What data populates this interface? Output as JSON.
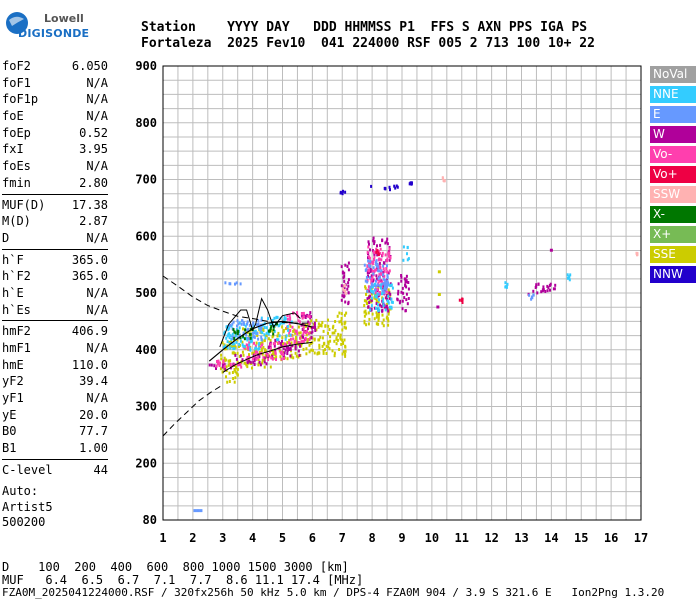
{
  "logo": {
    "line1": "Lowell",
    "line2": "DIGISONDE"
  },
  "header": {
    "line1": "Station    YYYY DAY   DDD HHMMSS P1  FFS S AXN PPS IGA PS",
    "line2": "Fortaleza  2025 Fev10  041 224000 RSF 005 2 713 100 10+ 22"
  },
  "params": [
    [
      [
        "foF2",
        "6.050"
      ],
      [
        "foF1",
        "N/A"
      ],
      [
        "foF1p",
        "N/A"
      ],
      [
        "foE",
        "N/A"
      ],
      [
        "foEp",
        "0.52"
      ],
      [
        "fxI",
        "3.95"
      ],
      [
        "foEs",
        "N/A"
      ],
      [
        "fmin",
        "2.80"
      ]
    ],
    [
      [
        "MUF(D)",
        "17.38"
      ],
      [
        "M(D)",
        "2.87"
      ],
      [
        "D",
        "N/A"
      ]
    ],
    [
      [
        "h`F",
        "365.0"
      ],
      [
        "h`F2",
        "365.0"
      ],
      [
        "h`E",
        "N/A"
      ],
      [
        "h`Es",
        "N/A"
      ]
    ],
    [
      [
        "hmF2",
        "406.9"
      ],
      [
        "hmF1",
        "N/A"
      ],
      [
        "hmE",
        "110.0"
      ],
      [
        "yF2",
        "39.4"
      ],
      [
        "yF1",
        "N/A"
      ],
      [
        "yE",
        "20.0"
      ],
      [
        "B0",
        "77.7"
      ],
      [
        "B1",
        "1.00"
      ]
    ],
    [
      [
        "C-level",
        "44"
      ]
    ]
  ],
  "auto": [
    "Auto:",
    "Artist5",
    "500200"
  ],
  "footer": {
    "line1": "D    100  200  400  600  800 1000 1500 3000 [km]",
    "line2": "MUF   6.4  6.5  6.7  7.1  7.7  8.6 11.1 17.4 [MHz]",
    "line3": "FZA0M_2025041224000.RSF / 320fx256h 50 kHz 5.0 km / DPS-4 FZA0M 904 / 3.9 S 321.6 E   Ion2Png 1.3.20"
  },
  "legend": [
    {
      "label": "NoVal",
      "color": "#a0a0a0",
      "text": "#ffffff"
    },
    {
      "label": "NNE",
      "color": "#33ccff",
      "text": "#ffffff"
    },
    {
      "label": "E",
      "color": "#6699ff",
      "text": "#ffffff"
    },
    {
      "label": "W",
      "color": "#b0009a",
      "text": "#ffffff"
    },
    {
      "label": "Vo-",
      "color": "#ff3fae",
      "text": "#ffffff"
    },
    {
      "label": "Vo+",
      "color": "#ee0044",
      "text": "#ffffff"
    },
    {
      "label": "SSW",
      "color": "#ffb2b2",
      "text": "#ffffff"
    },
    {
      "label": "X-",
      "color": "#007700",
      "text": "#ffffff"
    },
    {
      "label": "X+",
      "color": "#77bb55",
      "text": "#ffffff"
    },
    {
      "label": "SSE",
      "color": "#cccc00",
      "text": "#ffffff"
    },
    {
      "label": "NNW",
      "color": "#2200cc",
      "text": "#ffffff"
    }
  ],
  "chart_data": {
    "type": "scatter",
    "title": "",
    "xlabel": "",
    "ylabel": "",
    "xlim": [
      1,
      17
    ],
    "ylim": [
      80,
      900
    ],
    "xticks": [
      "1",
      "2",
      "3",
      "4",
      "5",
      "6",
      "7",
      "8",
      "9",
      "10",
      "11",
      "12",
      "13",
      "14",
      "15",
      "16",
      "17"
    ],
    "yticks": [
      "80",
      "200",
      "300",
      "400",
      "500",
      "600",
      "700",
      "800",
      "900"
    ],
    "yticks_values": [
      80,
      200,
      300,
      400,
      500,
      600,
      700,
      800,
      900
    ],
    "grid": true,
    "legend_placement": "right",
    "traces": [
      {
        "color": "#cccc00",
        "clusters": [
          [
            2.9,
            3.6,
            345,
            420
          ],
          [
            3.6,
            4.6,
            370,
            440
          ],
          [
            4.6,
            5.6,
            385,
            445
          ],
          [
            5.6,
            6.6,
            395,
            455
          ],
          [
            6.6,
            7.1,
            390,
            470
          ],
          [
            7.7,
            8.6,
            445,
            520
          ]
        ]
      },
      {
        "color": "#b0009a",
        "clusters": [
          [
            2.5,
            3.3,
            368,
            378
          ],
          [
            3.3,
            4.5,
            375,
            395
          ],
          [
            4.5,
            5.6,
            390,
            420
          ],
          [
            5.6,
            6.1,
            420,
            470
          ],
          [
            6.9,
            7.2,
            480,
            560
          ],
          [
            7.8,
            8.6,
            470,
            600
          ],
          [
            8.8,
            9.2,
            470,
            540
          ],
          [
            13.2,
            14.1,
            500,
            520
          ]
        ]
      },
      {
        "color": "#ff3fae",
        "clusters": [
          [
            2.6,
            3.6,
            372,
            385
          ],
          [
            3.6,
            5.1,
            385,
            415
          ],
          [
            5.1,
            5.9,
            415,
            470
          ],
          [
            7.8,
            8.6,
            500,
            585
          ]
        ]
      },
      {
        "color": "#33ccff",
        "clusters": [
          [
            3.0,
            4.2,
            400,
            450
          ],
          [
            4.2,
            5.3,
            420,
            460
          ],
          [
            7.9,
            8.7,
            470,
            520
          ],
          [
            9.0,
            9.2,
            560,
            590
          ],
          [
            12.4,
            12.5,
            512,
            525
          ],
          [
            14.5,
            14.6,
            525,
            535
          ]
        ]
      },
      {
        "color": "#6699ff",
        "clusters": [
          [
            3.2,
            4.3,
            420,
            455
          ],
          [
            7.7,
            8.5,
            500,
            560
          ],
          [
            3.0,
            3.6,
            518,
            522
          ],
          [
            13.2,
            13.4,
            490,
            500
          ]
        ]
      },
      {
        "color": "#2200cc",
        "clusters": [
          [
            7.9,
            8.9,
            684,
            692
          ],
          [
            6.9,
            7.1,
            677,
            682
          ],
          [
            9.2,
            9.3,
            693,
            698
          ]
        ]
      },
      {
        "color": "#007700",
        "clusters": [
          [
            3.3,
            4.0,
            420,
            440
          ],
          [
            4.4,
            4.8,
            430,
            450
          ]
        ]
      },
      {
        "color": "#ee0044",
        "clusters": [
          [
            8.1,
            8.3,
            560,
            580
          ],
          [
            10.9,
            11.0,
            485,
            495
          ]
        ]
      },
      {
        "color": "#ffb2b2",
        "clusters": [
          [
            6.9,
            7.1,
            500,
            520
          ],
          [
            10.3,
            10.4,
            700,
            706
          ],
          [
            16.8,
            16.9,
            568,
            574
          ]
        ]
      }
    ],
    "isolated_points": [
      {
        "x": 2.02,
        "y": 103,
        "color": "#6699ff"
      },
      {
        "x": 2.12,
        "y": 103,
        "color": "#6699ff"
      },
      {
        "x": 2.22,
        "y": 103,
        "color": "#6699ff"
      },
      {
        "x": 13.95,
        "y": 578,
        "color": "#b0009a"
      },
      {
        "x": 10.2,
        "y": 540,
        "color": "#cccc00"
      },
      {
        "x": 10.2,
        "y": 500,
        "color": "#cccc00"
      },
      {
        "x": 10.15,
        "y": 478,
        "color": "#b0009a"
      },
      {
        "x": 14.05,
        "y": 510,
        "color": "#b0009a"
      }
    ],
    "profile_dashed": [
      [
        1.0,
        530
      ],
      [
        1.5,
        512
      ],
      [
        2.0,
        493
      ],
      [
        2.5,
        478
      ],
      [
        3.0,
        468
      ],
      [
        3.5,
        459
      ],
      [
        4.0,
        455
      ],
      [
        4.5,
        450
      ],
      [
        5.0,
        448
      ],
      [
        5.5,
        447
      ],
      [
        6.0,
        447
      ],
      [
        1.0,
        248
      ],
      [
        1.4,
        270
      ],
      [
        1.8,
        290
      ],
      [
        2.2,
        310
      ],
      [
        2.6,
        325
      ],
      [
        3.0,
        338
      ]
    ],
    "profile_solid": [
      [
        2.55,
        380
      ],
      [
        3.0,
        400
      ],
      [
        3.5,
        420
      ],
      [
        4.0,
        437
      ],
      [
        4.5,
        447
      ],
      [
        5.0,
        450
      ],
      [
        5.5,
        446
      ],
      [
        6.0,
        440
      ]
    ],
    "trace_lines": [
      [
        [
          2.9,
          405
        ],
        [
          3.2,
          445
        ],
        [
          3.6,
          470
        ],
        [
          3.8,
          470
        ],
        [
          4.0,
          435
        ],
        [
          4.1,
          445
        ],
        [
          4.3,
          490
        ],
        [
          4.5,
          470
        ],
        [
          4.7,
          440
        ],
        [
          5.0,
          460
        ],
        [
          5.4,
          465
        ],
        [
          5.6,
          455
        ]
      ],
      [
        [
          3.0,
          360
        ],
        [
          3.4,
          373
        ],
        [
          3.8,
          383
        ],
        [
          4.2,
          392
        ],
        [
          4.6,
          398
        ],
        [
          5.0,
          405
        ],
        [
          5.5,
          410
        ],
        [
          6.0,
          413
        ]
      ]
    ]
  }
}
